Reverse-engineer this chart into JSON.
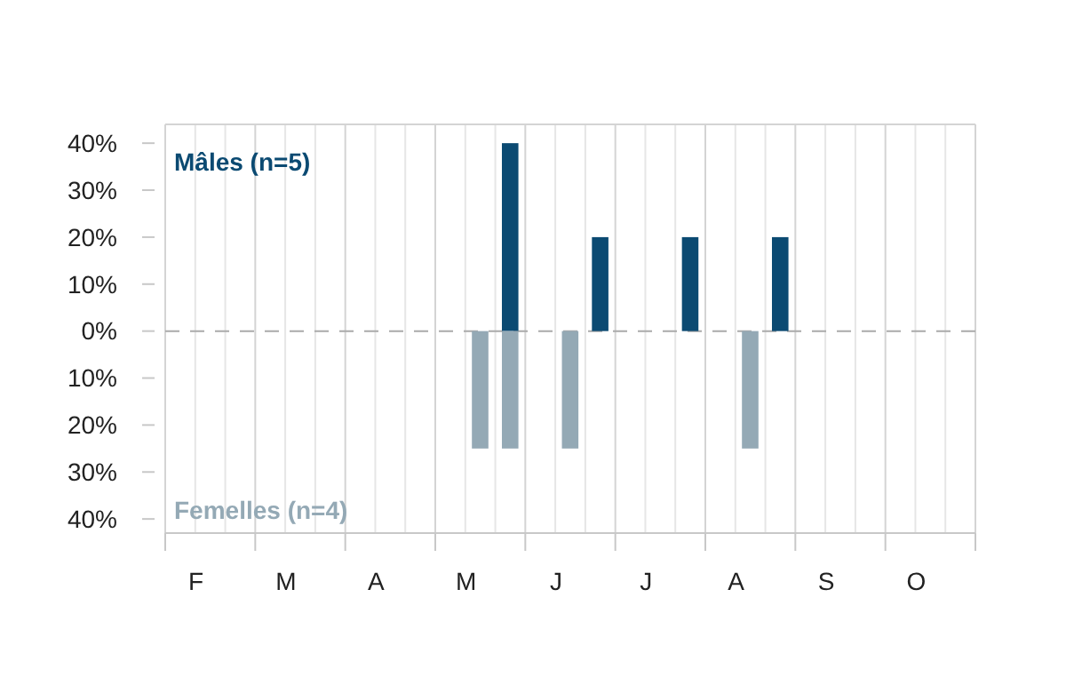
{
  "chart_data": {
    "type": "bar",
    "categories": [
      null,
      "F",
      null,
      null,
      "M",
      null,
      null,
      "A",
      null,
      null,
      "M",
      null,
      null,
      "J",
      null,
      null,
      "J",
      null,
      null,
      "A",
      null,
      null,
      "S",
      null,
      null,
      "O",
      null
    ],
    "series": [
      {
        "name": "Mâles (n=5)",
        "color": "#0b4a72",
        "values": [
          null,
          null,
          null,
          null,
          null,
          null,
          null,
          null,
          null,
          null,
          null,
          40,
          null,
          null,
          20,
          null,
          null,
          20,
          null,
          null,
          20,
          null,
          null,
          null,
          null,
          null,
          null
        ]
      },
      {
        "name": "Femelles (n=4)",
        "color": "#94a9b5",
        "values": [
          null,
          null,
          null,
          null,
          null,
          null,
          null,
          null,
          null,
          null,
          -25,
          -25,
          null,
          -25,
          null,
          null,
          null,
          null,
          null,
          -25,
          null,
          null,
          null,
          null,
          null,
          null,
          null
        ]
      }
    ],
    "ylim": [
      -43,
      44
    ],
    "yticks": [
      {
        "value": 40,
        "label": "40%"
      },
      {
        "value": 30,
        "label": "30%"
      },
      {
        "value": 20,
        "label": "20%"
      },
      {
        "value": 10,
        "label": "10%"
      },
      {
        "value": 0,
        "label": "0%"
      },
      {
        "value": -10,
        "label": "10%"
      },
      {
        "value": -20,
        "label": "20%"
      },
      {
        "value": -30,
        "label": "30%"
      },
      {
        "value": -40,
        "label": "40%"
      }
    ],
    "grid": "x",
    "ref_lines": [
      {
        "axis": "y",
        "value": 0,
        "color": "#aaaaaa",
        "line_style": "dashed"
      }
    ]
  }
}
